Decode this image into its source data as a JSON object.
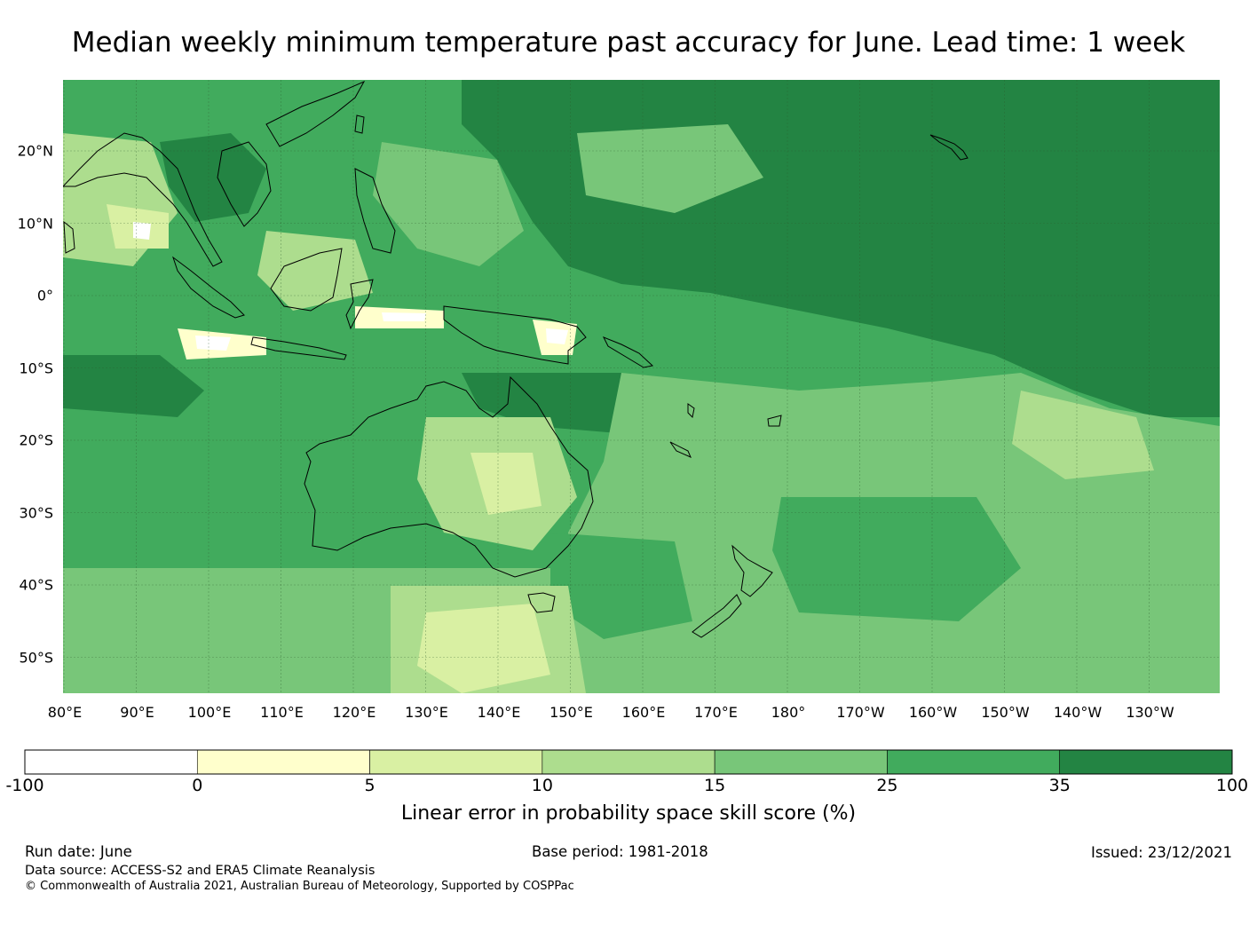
{
  "title": "Median weekly minimum temperature past accuracy for June. Lead time: 1 week",
  "map": {
    "lat_labels": [
      "20°N",
      "10°N",
      "0°",
      "10°S",
      "20°S",
      "30°S",
      "40°S",
      "50°S"
    ],
    "lon_labels": [
      "80°E",
      "90°E",
      "100°E",
      "110°E",
      "120°E",
      "130°E",
      "140°E",
      "150°E",
      "160°E",
      "170°E",
      "180°",
      "170°W",
      "160°W",
      "150°W",
      "140°W",
      "130°W"
    ],
    "lat_range": [
      -55,
      30
    ],
    "lon_range": [
      80,
      240
    ],
    "gridlines": true,
    "coastlines": true
  },
  "colorbar": {
    "title": "Linear error in probability space skill score (%)",
    "ticks": [
      "-100",
      "0",
      "5",
      "10",
      "15",
      "25",
      "35",
      "100"
    ],
    "bins": [
      {
        "from": -100,
        "to": 0,
        "color": "#ffffff"
      },
      {
        "from": 0,
        "to": 5,
        "color": "#ffffcc"
      },
      {
        "from": 5,
        "to": 10,
        "color": "#d9f0a3"
      },
      {
        "from": 10,
        "to": 15,
        "color": "#addd8e"
      },
      {
        "from": 15,
        "to": 25,
        "color": "#78c679"
      },
      {
        "from": 25,
        "to": 35,
        "color": "#41ab5d"
      },
      {
        "from": 35,
        "to": 100,
        "color": "#238443"
      }
    ]
  },
  "footer": {
    "run_date": "Run date: June",
    "base_period": "Base period: 1981-2018",
    "issued": "Issued: 23/12/2021",
    "data_source": "Data source: ACCESS-S2 and ERA5 Climate Reanalysis",
    "copyright": "© Commonwealth of Australia 2021, Australian Bureau of Meteorology, Supported by COSPPac"
  }
}
